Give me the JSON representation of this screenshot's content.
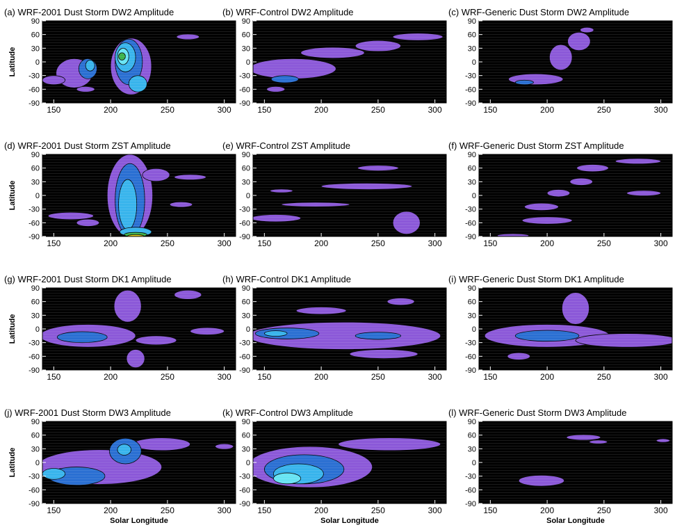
{
  "figure": {
    "xlabel": "Solar Longitude",
    "ylabel": "Latitude",
    "x_ticks": [
      "150",
      "200",
      "250",
      "300"
    ],
    "y_ticks": [
      "90",
      "60",
      "30",
      "0",
      "-30",
      "-60",
      "-90"
    ]
  },
  "colors": {
    "background": "#000000",
    "violet": "#8b58d8",
    "blue": "#2a6fd2",
    "light_blue": "#38b4ec",
    "cyan": "#67e4f3",
    "green": "#3bb24a",
    "yellow": "#e6d21f",
    "red": "#e03a1e"
  },
  "chart_data": [
    {
      "type": "heatmap",
      "title": "(a) WRF-2001 Dust Storm DW2 Amplitude",
      "xlabel": "",
      "ylabel": "Latitude",
      "xlim": [
        140,
        310
      ],
      "ylim": [
        -90,
        90
      ],
      "regions": [
        {
          "x": 168,
          "y": -25,
          "rx": 16,
          "ry": 32,
          "level": 1
        },
        {
          "x": 180,
          "y": -15,
          "rx": 8,
          "ry": 22,
          "level": 2
        },
        {
          "x": 182,
          "y": -8,
          "rx": 4,
          "ry": 12,
          "level": 3
        },
        {
          "x": 150,
          "y": -40,
          "rx": 10,
          "ry": 10,
          "level": 1
        },
        {
          "x": 178,
          "y": -60,
          "rx": 8,
          "ry": 6,
          "level": 1
        },
        {
          "x": 218,
          "y": -10,
          "rx": 18,
          "ry": 62,
          "level": 1
        },
        {
          "x": 216,
          "y": 0,
          "rx": 12,
          "ry": 50,
          "level": 2
        },
        {
          "x": 213,
          "y": 10,
          "rx": 9,
          "ry": 32,
          "level": 3
        },
        {
          "x": 211,
          "y": 12,
          "rx": 5,
          "ry": 18,
          "level": 4
        },
        {
          "x": 210,
          "y": 12,
          "rx": 3,
          "ry": 8,
          "level": 5
        },
        {
          "x": 224,
          "y": -48,
          "rx": 8,
          "ry": 18,
          "level": 3
        },
        {
          "x": 268,
          "y": 55,
          "rx": 10,
          "ry": 6,
          "level": 1
        }
      ]
    },
    {
      "type": "heatmap",
      "title": "(b) WRF-Control DW2 Amplitude",
      "xlabel": "",
      "ylabel": "",
      "xlim": [
        140,
        310
      ],
      "ylim": [
        -90,
        90
      ],
      "regions": [
        {
          "x": 175,
          "y": -15,
          "rx": 38,
          "ry": 22,
          "level": 1
        },
        {
          "x": 210,
          "y": 20,
          "rx": 28,
          "ry": 12,
          "level": 1
        },
        {
          "x": 250,
          "y": 35,
          "rx": 20,
          "ry": 12,
          "level": 1
        },
        {
          "x": 285,
          "y": 55,
          "rx": 22,
          "ry": 8,
          "level": 1
        },
        {
          "x": 168,
          "y": -38,
          "rx": 12,
          "ry": 8,
          "level": 2
        },
        {
          "x": 160,
          "y": -60,
          "rx": 8,
          "ry": 6,
          "level": 1
        }
      ]
    },
    {
      "type": "heatmap",
      "title": "(c) WRF-Generic Dust Storm DW2 Amplitude",
      "xlabel": "",
      "ylabel": "",
      "xlim": [
        140,
        310
      ],
      "ylim": [
        -90,
        90
      ],
      "regions": [
        {
          "x": 190,
          "y": -38,
          "rx": 24,
          "ry": 12,
          "level": 1
        },
        {
          "x": 212,
          "y": 10,
          "rx": 10,
          "ry": 28,
          "level": 1
        },
        {
          "x": 228,
          "y": 45,
          "rx": 10,
          "ry": 20,
          "level": 1
        },
        {
          "x": 235,
          "y": 70,
          "rx": 6,
          "ry": 6,
          "level": 1
        },
        {
          "x": 180,
          "y": -45,
          "rx": 8,
          "ry": 5,
          "level": 2
        }
      ]
    },
    {
      "type": "heatmap",
      "title": "(d) WRF-2001 Dust Storm ZST Amplitude",
      "xlabel": "",
      "ylabel": "Latitude",
      "xlim": [
        140,
        310
      ],
      "ylim": [
        -90,
        90
      ],
      "regions": [
        {
          "x": 217,
          "y": 0,
          "rx": 20,
          "ry": 90,
          "level": 1
        },
        {
          "x": 217,
          "y": -10,
          "rx": 13,
          "ry": 80,
          "level": 2
        },
        {
          "x": 215,
          "y": -20,
          "rx": 8,
          "ry": 55,
          "level": 3
        },
        {
          "x": 222,
          "y": -80,
          "rx": 14,
          "ry": 10,
          "level": 3
        },
        {
          "x": 222,
          "y": -86,
          "rx": 10,
          "ry": 5,
          "level": 5
        },
        {
          "x": 222,
          "y": -89,
          "rx": 7,
          "ry": 3,
          "level": 6
        },
        {
          "x": 180,
          "y": -60,
          "rx": 10,
          "ry": 8,
          "level": 1
        },
        {
          "x": 165,
          "y": -45,
          "rx": 20,
          "ry": 8,
          "level": 1
        },
        {
          "x": 240,
          "y": 45,
          "rx": 12,
          "ry": 14,
          "level": 1
        },
        {
          "x": 270,
          "y": 40,
          "rx": 14,
          "ry": 6,
          "level": 1
        },
        {
          "x": 262,
          "y": -20,
          "rx": 10,
          "ry": 6,
          "level": 1
        }
      ]
    },
    {
      "type": "heatmap",
      "title": "(e) WRF-Control ZST Amplitude",
      "xlabel": "",
      "ylabel": "",
      "xlim": [
        140,
        310
      ],
      "ylim": [
        -90,
        90
      ],
      "regions": [
        {
          "x": 160,
          "y": -50,
          "rx": 22,
          "ry": 8,
          "level": 1
        },
        {
          "x": 240,
          "y": 20,
          "rx": 40,
          "ry": 7,
          "level": 1
        },
        {
          "x": 250,
          "y": 60,
          "rx": 18,
          "ry": 6,
          "level": 1
        },
        {
          "x": 275,
          "y": -60,
          "rx": 12,
          "ry": 25,
          "level": 1
        },
        {
          "x": 195,
          "y": -20,
          "rx": 30,
          "ry": 5,
          "level": 1
        },
        {
          "x": 165,
          "y": 10,
          "rx": 10,
          "ry": 4,
          "level": 1
        }
      ]
    },
    {
      "type": "heatmap",
      "title": "(f) WRF-Generic Dust Storm ZST Amplitude",
      "xlabel": "",
      "ylabel": "",
      "xlim": [
        140,
        310
      ],
      "ylim": [
        -90,
        90
      ],
      "regions": [
        {
          "x": 200,
          "y": -55,
          "rx": 22,
          "ry": 8,
          "level": 1
        },
        {
          "x": 195,
          "y": -25,
          "rx": 15,
          "ry": 8,
          "level": 1
        },
        {
          "x": 210,
          "y": 5,
          "rx": 10,
          "ry": 8,
          "level": 1
        },
        {
          "x": 230,
          "y": 30,
          "rx": 10,
          "ry": 8,
          "level": 1
        },
        {
          "x": 240,
          "y": 60,
          "rx": 14,
          "ry": 8,
          "level": 1
        },
        {
          "x": 280,
          "y": 75,
          "rx": 20,
          "ry": 6,
          "level": 1
        },
        {
          "x": 285,
          "y": 5,
          "rx": 15,
          "ry": 6,
          "level": 1
        },
        {
          "x": 170,
          "y": -88,
          "rx": 14,
          "ry": 4,
          "level": 1
        }
      ]
    },
    {
      "type": "heatmap",
      "title": "(g) WRF-2001 Dust Storm DK1 Amplitude",
      "xlabel": "",
      "ylabel": "Latitude",
      "xlim": [
        140,
        310
      ],
      "ylim": [
        -90,
        90
      ],
      "regions": [
        {
          "x": 180,
          "y": -15,
          "rx": 42,
          "ry": 25,
          "level": 1
        },
        {
          "x": 175,
          "y": -18,
          "rx": 22,
          "ry": 12,
          "level": 2
        },
        {
          "x": 215,
          "y": 50,
          "rx": 12,
          "ry": 35,
          "level": 1
        },
        {
          "x": 268,
          "y": 75,
          "rx": 12,
          "ry": 10,
          "level": 1
        },
        {
          "x": 240,
          "y": -25,
          "rx": 18,
          "ry": 10,
          "level": 1
        },
        {
          "x": 285,
          "y": -5,
          "rx": 15,
          "ry": 8,
          "level": 1
        },
        {
          "x": 222,
          "y": -65,
          "rx": 8,
          "ry": 20,
          "level": 1
        }
      ]
    },
    {
      "type": "heatmap",
      "title": "(h) WRF-Control DK1 Amplitude",
      "xlabel": "",
      "ylabel": "",
      "xlim": [
        140,
        310
      ],
      "ylim": [
        -90,
        90
      ],
      "regions": [
        {
          "x": 220,
          "y": -15,
          "rx": 85,
          "ry": 30,
          "level": 1
        },
        {
          "x": 170,
          "y": -10,
          "rx": 28,
          "ry": 12,
          "level": 2
        },
        {
          "x": 250,
          "y": -15,
          "rx": 20,
          "ry": 8,
          "level": 2
        },
        {
          "x": 160,
          "y": -10,
          "rx": 10,
          "ry": 6,
          "level": 3
        },
        {
          "x": 200,
          "y": 40,
          "rx": 22,
          "ry": 8,
          "level": 1
        },
        {
          "x": 270,
          "y": 60,
          "rx": 12,
          "ry": 8,
          "level": 1
        },
        {
          "x": 255,
          "y": -55,
          "rx": 30,
          "ry": 10,
          "level": 1
        }
      ]
    },
    {
      "type": "heatmap",
      "title": "(i) WRF-Generic Dust Storm DK1 Amplitude",
      "xlabel": "",
      "ylabel": "",
      "xlim": [
        140,
        310
      ],
      "ylim": [
        -90,
        90
      ],
      "regions": [
        {
          "x": 200,
          "y": -15,
          "rx": 55,
          "ry": 25,
          "level": 1
        },
        {
          "x": 270,
          "y": -25,
          "rx": 45,
          "ry": 15,
          "level": 1
        },
        {
          "x": 200,
          "y": -15,
          "rx": 28,
          "ry": 12,
          "level": 2
        },
        {
          "x": 225,
          "y": 45,
          "rx": 12,
          "ry": 35,
          "level": 1
        },
        {
          "x": 175,
          "y": -60,
          "rx": 10,
          "ry": 8,
          "level": 1
        }
      ]
    },
    {
      "type": "heatmap",
      "title": "(j) WRF-2001 Dust Storm DW3 Amplitude",
      "xlabel": "Solar Longitude",
      "ylabel": "Latitude",
      "xlim": [
        140,
        310
      ],
      "ylim": [
        -90,
        90
      ],
      "regions": [
        {
          "x": 190,
          "y": -10,
          "rx": 55,
          "ry": 38,
          "level": 1
        },
        {
          "x": 245,
          "y": 40,
          "rx": 25,
          "ry": 14,
          "level": 1
        },
        {
          "x": 213,
          "y": 25,
          "rx": 14,
          "ry": 28,
          "level": 2
        },
        {
          "x": 170,
          "y": -30,
          "rx": 25,
          "ry": 20,
          "level": 2
        },
        {
          "x": 150,
          "y": -25,
          "rx": 10,
          "ry": 12,
          "level": 3
        },
        {
          "x": 212,
          "y": 28,
          "rx": 6,
          "ry": 12,
          "level": 3
        },
        {
          "x": 300,
          "y": 35,
          "rx": 8,
          "ry": 6,
          "level": 1
        }
      ]
    },
    {
      "type": "heatmap",
      "title": "(k) WRF-Control DW3 Amplitude",
      "xlabel": "Solar Longitude",
      "ylabel": "",
      "xlim": [
        140,
        310
      ],
      "ylim": [
        -90,
        90
      ],
      "regions": [
        {
          "x": 190,
          "y": -10,
          "rx": 55,
          "ry": 45,
          "level": 1
        },
        {
          "x": 260,
          "y": 40,
          "rx": 45,
          "ry": 14,
          "level": 1
        },
        {
          "x": 185,
          "y": -15,
          "rx": 35,
          "ry": 32,
          "level": 2
        },
        {
          "x": 180,
          "y": -25,
          "rx": 22,
          "ry": 22,
          "level": 3
        },
        {
          "x": 170,
          "y": -35,
          "rx": 12,
          "ry": 12,
          "level": 4
        }
      ]
    },
    {
      "type": "heatmap",
      "title": "(l) WRF-Generic Dust Storm DW3 Amplitude",
      "xlabel": "Solar Longitude",
      "ylabel": "",
      "xlim": [
        140,
        310
      ],
      "ylim": [
        -90,
        90
      ],
      "regions": [
        {
          "x": 195,
          "y": -40,
          "rx": 20,
          "ry": 12,
          "level": 1
        },
        {
          "x": 232,
          "y": 55,
          "rx": 15,
          "ry": 6,
          "level": 1
        },
        {
          "x": 245,
          "y": 45,
          "rx": 8,
          "ry": 4,
          "level": 1
        },
        {
          "x": 302,
          "y": 48,
          "rx": 6,
          "ry": 4,
          "level": 1
        }
      ]
    }
  ]
}
